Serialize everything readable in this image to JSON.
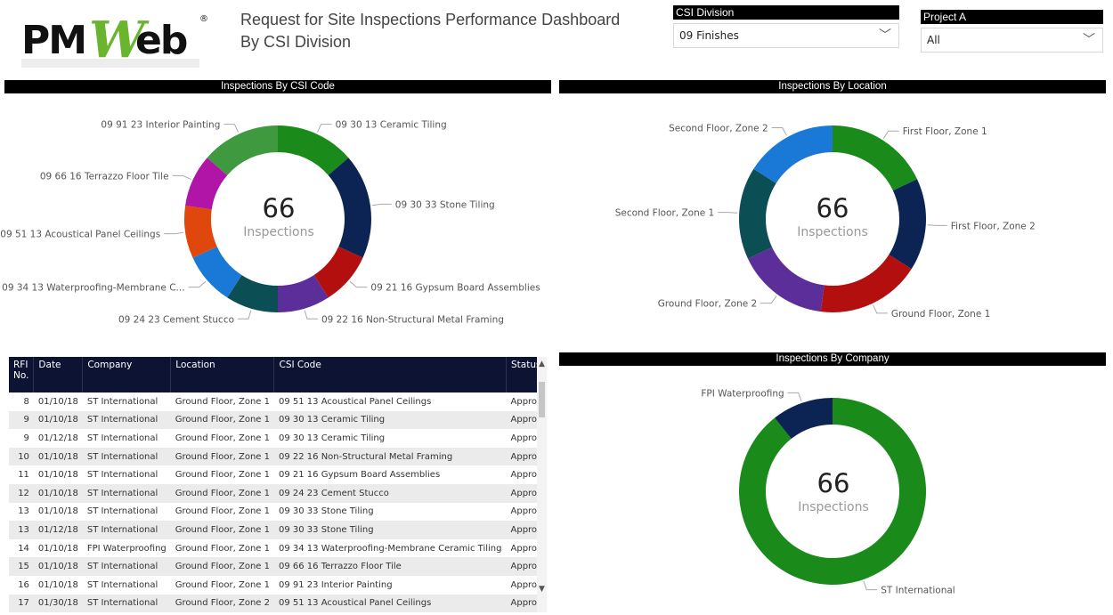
{
  "header": {
    "title_line1": "Request for Site Inspections Performance Dashboard",
    "title_line2": "By CSI Division",
    "logo_text": "PMWeb"
  },
  "filters": {
    "csi_division": {
      "label": "CSI Division",
      "value": "09 Finishes"
    },
    "project": {
      "label": "Project A",
      "value": "All"
    }
  },
  "chart_data": [
    {
      "type": "pie",
      "title": "Inspections By CSI Code",
      "center_value": "66",
      "center_label": "Inspections",
      "slices": [
        {
          "label": "09 30 13 Ceramic Tiling",
          "value": 9,
          "color": "#1a8a1a"
        },
        {
          "label": "09 30 33 Stone Tiling",
          "value": 12,
          "color": "#0c2454"
        },
        {
          "label": "09 21 16 Gypsum Board Assemblies",
          "value": 6,
          "color": "#b30f0f"
        },
        {
          "label": "09 22 16 Non-Structural Metal Framing",
          "value": 6,
          "color": "#5c2e9a"
        },
        {
          "label": "09 24 23 Cement Stucco",
          "value": 6,
          "color": "#0b4f55"
        },
        {
          "label": "09 34 13 Waterproofing-Membrane C...",
          "value": 6,
          "color": "#1a78d6"
        },
        {
          "label": "09 51 13 Acoustical Panel Ceilings",
          "value": 6,
          "color": "#e0470d"
        },
        {
          "label": "09 66 16 Terrazzo Floor Tile",
          "value": 6,
          "color": "#b015a8"
        },
        {
          "label": "09 91 23 Interior Painting",
          "value": 9,
          "color": "#3f9a3f"
        }
      ]
    },
    {
      "type": "pie",
      "title": "Inspections By Location",
      "center_value": "66",
      "center_label": "Inspections",
      "slices": [
        {
          "label": "First Floor, Zone 1",
          "value": 9,
          "color": "#1a8a1a"
        },
        {
          "label": "First Floor, Zone 2",
          "value": 8,
          "color": "#0c2454"
        },
        {
          "label": "Ground Floor, Zone 1",
          "value": 9,
          "color": "#b30f0f"
        },
        {
          "label": "Ground Floor, Zone 2",
          "value": 8,
          "color": "#5c2e9a"
        },
        {
          "label": "Second Floor, Zone 1",
          "value": 8,
          "color": "#0b4f55"
        },
        {
          "label": "Second Floor, Zone 2",
          "value": 8,
          "color": "#1a78d6"
        }
      ]
    },
    {
      "type": "pie",
      "title": "Inspections By Company",
      "center_value": "66",
      "center_label": "Inspections",
      "slices": [
        {
          "label": "ST International",
          "value": 59,
          "color": "#1a8a1a"
        },
        {
          "label": "FPI Waterproofing",
          "value": 7,
          "color": "#0c2454"
        }
      ]
    }
  ],
  "table": {
    "headers": [
      "RFI No.",
      "Date",
      "Company",
      "Location",
      "CSI Code",
      "Status"
    ],
    "rows": [
      [
        "8",
        "01/10/18",
        "ST International",
        "Ground Floor, Zone 1",
        "09 51 13 Acoustical Panel Ceilings",
        "Approved"
      ],
      [
        "9",
        "01/10/18",
        "ST International",
        "Ground Floor, Zone 1",
        "09 30 13 Ceramic Tiling",
        "Approved"
      ],
      [
        "9",
        "01/12/18",
        "ST International",
        "Ground Floor, Zone 1",
        "09 30 13 Ceramic Tiling",
        "Approved"
      ],
      [
        "10",
        "01/10/18",
        "ST International",
        "Ground Floor, Zone 1",
        "09 22 16 Non-Structural Metal Framing",
        "Approved"
      ],
      [
        "11",
        "01/10/18",
        "ST International",
        "Ground Floor, Zone 1",
        "09 21 16 Gypsum Board Assemblies",
        "Approved"
      ],
      [
        "12",
        "01/10/18",
        "ST International",
        "Ground Floor, Zone 1",
        "09 24 23 Cement Stucco",
        "Approved"
      ],
      [
        "13",
        "01/10/18",
        "ST International",
        "Ground Floor, Zone 1",
        "09 30 33 Stone Tiling",
        "Approved"
      ],
      [
        "13",
        "01/12/18",
        "ST International",
        "Ground Floor, Zone 1",
        "09 30 33 Stone Tiling",
        "Approved"
      ],
      [
        "14",
        "01/10/18",
        "FPI Waterproofing",
        "Ground Floor, Zone 1",
        "09 34 13 Waterproofing-Membrane Ceramic Tiling",
        "Approved"
      ],
      [
        "15",
        "01/10/18",
        "ST International",
        "Ground Floor, Zone 1",
        "09 66 16 Terrazzo Floor Tile",
        "Approved"
      ],
      [
        "16",
        "01/10/18",
        "ST International",
        "Ground Floor, Zone 1",
        "09 91 23 Interior Painting",
        "Approved"
      ],
      [
        "17",
        "01/30/18",
        "ST International",
        "Ground Floor, Zone 2",
        "09 51 13 Acoustical Panel Ceilings",
        "Approved"
      ]
    ]
  },
  "icons": {
    "dropdown": "chevron-down-icon",
    "scroll_up": "caret-up-icon",
    "scroll_down": "caret-down-icon"
  }
}
